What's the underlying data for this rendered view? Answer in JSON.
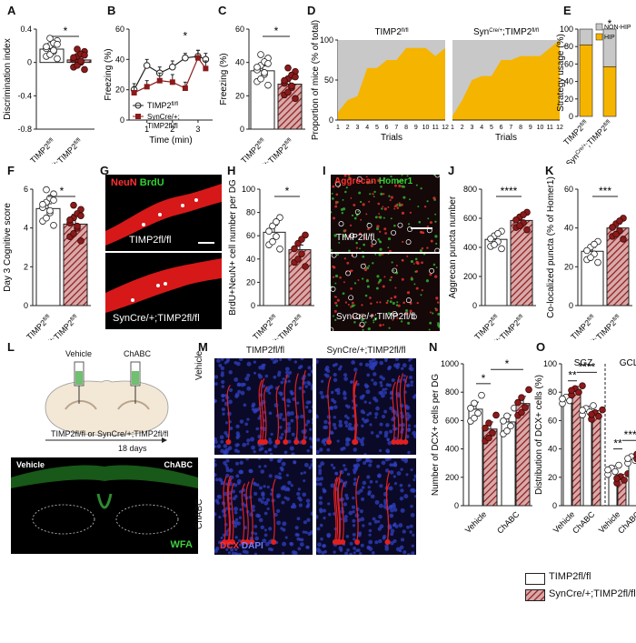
{
  "colors": {
    "dark_red": "#8B1A1A",
    "hatch": "#A05050",
    "gold": "#F5B400",
    "gray": "#C8C8C8",
    "wfa": "#2E8B2E"
  },
  "panel_labels": [
    "A",
    "B",
    "C",
    "D",
    "E",
    "F",
    "G",
    "H",
    "I",
    "J",
    "K",
    "L",
    "M",
    "N",
    "O"
  ],
  "group_labels": {
    "ctrl": "TIMP2fl/fl",
    "ko": "SynCre/+;TIMP2fl/fl",
    "ko_split": [
      "SynCre/+;",
      "TIMP2fl/fl"
    ]
  },
  "images": {
    "G": {
      "top_label": "TIMP2fl/fl",
      "bottom_label": "SynCre/+;TIMP2fl/fl",
      "stain_neun": "NeuN",
      "stain_brdu": "BrdU"
    },
    "I": {
      "top_label": "TIMP2fl/fl",
      "bottom_label": "SynCre/+;TIMP2fl/fl",
      "stain_aggrecan": "Aggrecan",
      "stain_homer1": "Homer1"
    },
    "L": {
      "syringe_left": "Vehicle",
      "syringe_right": "ChABC",
      "caption": "TIMP2fl/fl or SynCre/+;TIMP2fl/fl",
      "duration": "18 days",
      "image_left": "Vehicle",
      "image_right": "ChABC",
      "stain": "WFA"
    },
    "M": {
      "col_left": "TIMP2fl/fl",
      "col_right": "SynCre/+;TIMP2fl/fl",
      "row_top": "Vehicle",
      "row_bottom": "ChABC",
      "stain_dcx": "DCX",
      "stain_dapi": "DAPI"
    }
  },
  "legend": {
    "ctrl": "TIMP2fl/fl",
    "ko": "SynCre/+;TIMP2fl/fl"
  },
  "chart_data": [
    {
      "id": "A",
      "type": "bar",
      "ylabel": "Discrimination index",
      "ylim": [
        -0.8,
        0.4
      ],
      "yticks": [
        -0.8,
        -0.4,
        0.0,
        0.4
      ],
      "categories": [
        "TIMP2fl/fl",
        "SynCre/+;TIMP2fl/fl"
      ],
      "values": [
        0.16,
        0.03
      ],
      "errors": [
        0.04,
        0.04
      ],
      "significance": "*"
    },
    {
      "id": "B",
      "type": "line",
      "xlabel": "Time (min)",
      "ylabel": "Freezing (%)",
      "ylim": [
        0,
        60
      ],
      "yticks": [
        0,
        20,
        40,
        60
      ],
      "x": [
        0.5,
        1,
        1.5,
        2,
        2.5,
        3,
        3.3
      ],
      "xticks": [
        1,
        2,
        3
      ],
      "series": [
        {
          "name": "TIMP2fl/fl",
          "values": [
            20,
            36,
            31,
            35,
            41,
            42,
            40
          ],
          "errors": [
            4,
            4,
            4,
            4,
            3,
            4,
            4
          ]
        },
        {
          "name": "SynCre/+;TIMP2fl/fl",
          "values": [
            18,
            22,
            26,
            25,
            21,
            41,
            34
          ],
          "errors": [
            4,
            4,
            5,
            5,
            4,
            5,
            5
          ]
        }
      ],
      "significance": "*"
    },
    {
      "id": "C",
      "type": "bar",
      "ylabel": "Freezing (%)",
      "ylim": [
        0,
        60
      ],
      "yticks": [
        0,
        20,
        40,
        60
      ],
      "categories": [
        "TIMP2fl/fl",
        "SynCre/+;TIMP2fl/fl"
      ],
      "values": [
        35,
        27
      ],
      "errors": [
        3,
        3
      ],
      "significance": "*"
    },
    {
      "id": "D",
      "type": "area",
      "ylabel": "Proportion of mice (% of total)",
      "xlabel": "Trials",
      "ylim": [
        0,
        100
      ],
      "yticks": [
        0,
        50,
        100
      ],
      "x": [
        1,
        2,
        3,
        4,
        5,
        6,
        7,
        8,
        9,
        10,
        11,
        12
      ],
      "series": [
        {
          "name": "TIMP2fl/fl",
          "values": [
            10,
            25,
            30,
            65,
            65,
            75,
            75,
            90,
            90,
            90,
            80,
            90
          ]
        },
        {
          "name": "SynCre/+;TIMP2fl/fl",
          "values": [
            5,
            25,
            50,
            55,
            55,
            75,
            75,
            80,
            80,
            80,
            90,
            100
          ]
        }
      ]
    },
    {
      "id": "E",
      "type": "bar",
      "ylabel": "Strategy usage (%)",
      "ylim": [
        0,
        100
      ],
      "yticks": [
        0,
        20,
        40,
        60,
        80,
        100
      ],
      "categories": [
        "TIMP2fl/fl",
        "SynCre/+;TIMP2fl/fl"
      ],
      "series": [
        {
          "name": "HIP",
          "values": [
            82,
            57
          ]
        },
        {
          "name": "NON-HIP",
          "values": [
            18,
            43
          ]
        }
      ],
      "legend": "top-right",
      "significance": "*"
    },
    {
      "id": "F",
      "type": "bar",
      "ylabel": "Day 3 Cognitive score",
      "ylim": [
        0,
        6
      ],
      "yticks": [
        0,
        2,
        4,
        6
      ],
      "categories": [
        "TIMP2fl/fl",
        "SynCre/+;TIMP2fl/fl"
      ],
      "values": [
        5.0,
        4.2
      ],
      "errors": [
        0.25,
        0.5
      ],
      "significance": "*"
    },
    {
      "id": "H",
      "type": "bar",
      "ylabel": "BrdU+NeuN+ cell number per DG",
      "ylim": [
        0,
        100
      ],
      "yticks": [
        0,
        20,
        40,
        60,
        80,
        100
      ],
      "categories": [
        "TIMP2fl/fl",
        "SynCre/+;TIMP2fl/fl"
      ],
      "values": [
        63,
        48
      ],
      "errors": [
        6,
        4
      ],
      "significance": "*"
    },
    {
      "id": "J",
      "type": "bar",
      "ylabel": "Aggrecan puncta number",
      "ylim": [
        0,
        800
      ],
      "yticks": [
        0,
        200,
        400,
        600,
        800
      ],
      "categories": [
        "TIMP2fl/fl",
        "SynCre/+;TIMP2fl/fl"
      ],
      "values": [
        455,
        585
      ],
      "errors": [
        20,
        20
      ],
      "significance": "****"
    },
    {
      "id": "K",
      "type": "bar",
      "ylabel": "Co-localized puncta (% of Homer1)",
      "ylim": [
        0,
        60
      ],
      "yticks": [
        0,
        20,
        40,
        60
      ],
      "categories": [
        "TIMP2fl/fl",
        "SynCre/+;TIMP2fl/fl"
      ],
      "values": [
        28,
        40
      ],
      "errors": [
        2,
        2
      ],
      "significance": "***"
    },
    {
      "id": "N",
      "type": "bar",
      "ylabel": "Number of DCX+ cells per DG",
      "ylim": [
        0,
        1000
      ],
      "yticks": [
        0,
        200,
        400,
        600,
        800,
        1000
      ],
      "categories": [
        "Vehicle",
        "ChABC"
      ],
      "series": [
        {
          "name": "TIMP2fl/fl",
          "values": [
            680,
            590
          ]
        },
        {
          "name": "SynCre/+;TIMP2fl/fl",
          "values": [
            540,
            720
          ]
        }
      ],
      "significance": [
        "*",
        "*"
      ]
    },
    {
      "id": "O",
      "type": "bar",
      "ylabel": "Distribution of DCX+ cells (%)",
      "ylim": [
        0,
        100
      ],
      "yticks": [
        0,
        20,
        40,
        60,
        80,
        100
      ],
      "sections": [
        "SGZ",
        "GCL"
      ],
      "categories": [
        "Vehicle",
        "ChABC",
        "Vehicle",
        "ChABC"
      ],
      "series": [
        {
          "name": "TIMP2fl/fl",
          "values": [
            75,
            67,
            25,
            33
          ]
        },
        {
          "name": "SynCre/+;TIMP2fl/fl",
          "values": [
            81,
            64,
            19,
            36
          ]
        }
      ],
      "significance": [
        "**",
        "****",
        "**",
        "****"
      ]
    }
  ]
}
